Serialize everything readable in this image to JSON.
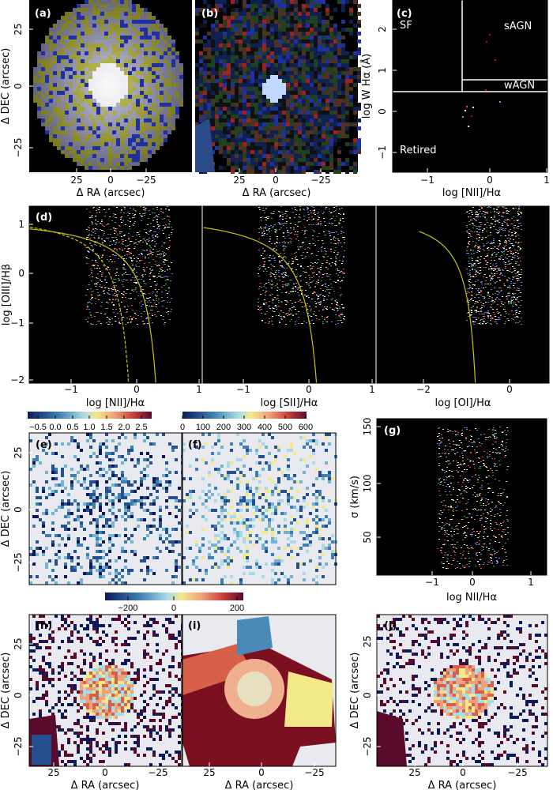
{
  "panels": {
    "a": {
      "label": "(a)",
      "xlabel": "Δ RA (arcsec)",
      "ylabel": "Δ DEC (arcsec)",
      "xticks": [
        "25",
        "0",
        "−25"
      ],
      "yticks": [
        "25",
        "0",
        "−25"
      ]
    },
    "b": {
      "label": "(b)",
      "xlabel": "Δ RA (arcsec)",
      "xticks": [
        "25",
        "0",
        "−25"
      ]
    },
    "c": {
      "label": "(c)",
      "xlabel": "log [NII]/Hα",
      "ylabel": "log W Hα (Å)",
      "xticks": [
        "−1",
        "0",
        "1"
      ],
      "yticks": [
        "2",
        "1",
        "0",
        "−1"
      ],
      "regions": [
        "SF",
        "sAGN",
        "wAGN",
        "Retired"
      ]
    },
    "d": {
      "label": "(d)",
      "ylabel": "log [OIII]/Hβ",
      "yticks": [
        "1",
        "0",
        "−1",
        "−2"
      ],
      "xlabels": [
        "log [NII]/Hα",
        "log [SII]/Hα",
        "log [OI]/Hα"
      ],
      "xticks1": [
        "−1",
        "0",
        "1"
      ],
      "xticks2": [
        "−1",
        "0",
        "1"
      ],
      "xticks3": [
        "−2",
        "0"
      ]
    },
    "e": {
      "label": "(e)",
      "ylabel": "Δ DEC (arcsec)",
      "yticks": [
        "25",
        "0",
        "−25"
      ],
      "colorbar_ticks": [
        "−0.5",
        "0.0",
        "0.5",
        "1.0",
        "1.5",
        "2.0",
        "2.5"
      ]
    },
    "f": {
      "label": "(f)",
      "colorbar_ticks": [
        "0",
        "100",
        "200",
        "300",
        "400",
        "500",
        "600"
      ]
    },
    "g": {
      "label": "(g)",
      "xlabel": "log NII/Hα",
      "ylabel": "σ (km/s)",
      "xticks": [
        "−1",
        "0",
        "1"
      ],
      "yticks": [
        "150",
        "100",
        "50"
      ]
    },
    "h": {
      "label": "(h)",
      "xlabel": "Δ RA (arcsec)",
      "ylabel": "Δ DEC (arcsec)",
      "xticks": [
        "25",
        "0",
        "−25"
      ],
      "yticks": [
        "25",
        "0",
        "−25"
      ],
      "colorbar_ticks": [
        "−200",
        "0",
        "200"
      ]
    },
    "i": {
      "label": "(i)",
      "xlabel": "Δ RA (arcsec)",
      "xticks": [
        "25",
        "0",
        "−25"
      ]
    },
    "j": {
      "label": "(j)",
      "xlabel": "Δ RA (arcsec)",
      "ylabel": "Δ DEC (arcsec)",
      "xticks": [
        "25",
        "0",
        "−25"
      ],
      "yticks": [
        "25",
        "0",
        "−25"
      ]
    }
  },
  "chart_data": [
    {
      "type": "heatmap",
      "panel": "a",
      "xlabel": "Δ RA (arcsec)",
      "ylabel": "Δ DEC (arcsec)"
    },
    {
      "type": "heatmap",
      "panel": "b",
      "xlabel": "Δ RA (arcsec)"
    },
    {
      "type": "scatter",
      "panel": "c",
      "xlabel": "log [NII]/Hα",
      "ylabel": "log W Hα (Å)",
      "xlim": [
        -1.6,
        1
      ],
      "ylim": [
        -1.4,
        2.7
      ],
      "dividers": {
        "x": -0.4,
        "y_sf": 0.48,
        "y_wagn": 0.78
      }
    },
    {
      "type": "scatter",
      "panel": "d",
      "ylabel": "log [OIII]/Hβ",
      "ylim": [
        -2,
        1.2
      ],
      "xlims": [
        [
          -1.65,
          1
        ],
        [
          -1.65,
          1
        ],
        [
          -2,
          0.9
        ]
      ],
      "line_color": "#c8c800"
    },
    {
      "type": "heatmap",
      "panel": "e",
      "colorbar_range": [
        -0.8,
        2.8
      ]
    },
    {
      "type": "heatmap",
      "panel": "f",
      "colorbar_range": [
        0,
        600
      ]
    },
    {
      "type": "scatter",
      "panel": "g",
      "xlabel": "log NII/Hα",
      "ylabel": "σ (km/s)",
      "xlim": [
        -1.7,
        1.3
      ],
      "ylim": [
        15,
        155
      ]
    },
    {
      "type": "heatmap",
      "panel": "h",
      "colorbar_range": [
        -250,
        250
      ]
    },
    {
      "type": "heatmap",
      "panel": "i"
    },
    {
      "type": "heatmap",
      "panel": "j"
    }
  ],
  "colors": {
    "background_maps": "#e8eaf0",
    "black": "#000000",
    "line": "#c8c800"
  }
}
